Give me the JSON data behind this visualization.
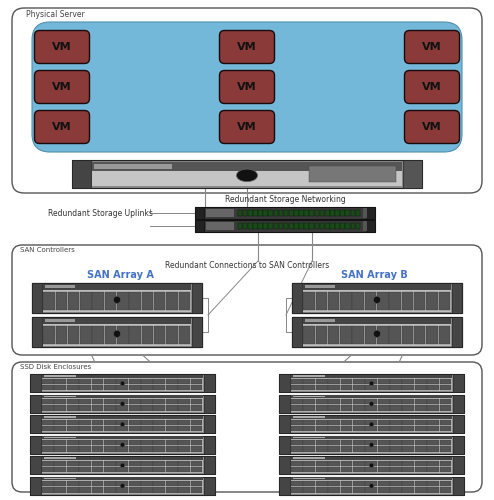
{
  "bg_color": "#ffffff",
  "vm_color": "#8B3A3A",
  "vm_bg_color": "#6BAED6",
  "vm_text": "VM",
  "vm_text_color": "#1a1a1a",
  "physical_server_label": "Physical Server",
  "redundant_uplinks_label": "Redundant Storage Uplinks",
  "redundant_networking_label": "Redundant Storage Networking",
  "san_controllers_label": "SAN Controllers",
  "redundant_connections_label": "Redundant Connections to SAN Controllers",
  "san_array_a_label": "SAN Array A",
  "san_array_b_label": "SAN Array B",
  "ssd_enclosures_label": "SSD Disk Enclosures",
  "san_label_color": "#4472C4",
  "edge_color": "#555555",
  "line_color": "#888888",
  "fig_w": 4.94,
  "fig_h": 5.0,
  "dpi": 100
}
